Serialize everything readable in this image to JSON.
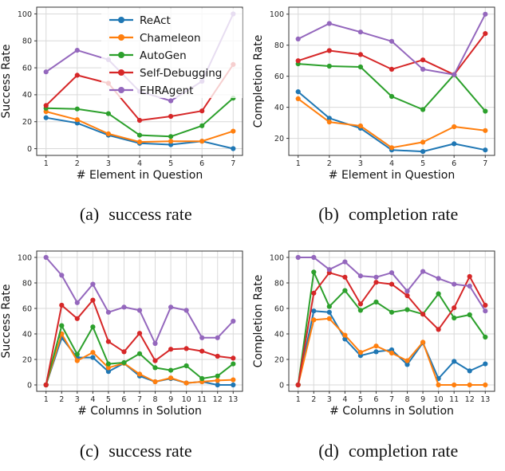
{
  "figure": {
    "captions": [
      {
        "tag": "(a)",
        "text": "success rate"
      },
      {
        "tag": "(b)",
        "text": "completion rate"
      },
      {
        "tag": "(c)",
        "text": "success rate"
      },
      {
        "tag": "(d)",
        "text": "completion rate"
      }
    ],
    "legend_labels": [
      "ReAct",
      "Chameleon",
      "AutoGen",
      "Self-Debugging",
      "EHRAgent"
    ],
    "palette": {
      "blue": "#1f77b4",
      "orange": "#ff7f0e",
      "green": "#2ca02c",
      "red": "#d62728",
      "purple": "#9467bd",
      "grid": "#d9d9d9",
      "spine": "#333333",
      "tick_text": "#262626",
      "label_text": "#111111"
    }
  },
  "chart_data": [
    {
      "id": "a",
      "type": "line",
      "title": "",
      "xlabel": "# Element in Question",
      "ylabel": "Success Rate",
      "x": [
        1,
        2,
        3,
        4,
        5,
        6,
        7
      ],
      "xlim": [
        0.7,
        7.3
      ],
      "ylim": [
        -5,
        105
      ],
      "yticks": [
        0,
        20,
        40,
        60,
        80,
        100
      ],
      "grid": true,
      "legend": true,
      "legend_position": "upper right",
      "series": [
        {
          "name": "ReAct",
          "color": "#1f77b4",
          "values": [
            23,
            19,
            10,
            4,
            3,
            5.5,
            0
          ]
        },
        {
          "name": "Chameleon",
          "color": "#ff7f0e",
          "values": [
            27.5,
            21.5,
            11,
            5,
            5.5,
            5.5,
            13
          ]
        },
        {
          "name": "AutoGen",
          "color": "#2ca02c",
          "values": [
            30,
            29.5,
            26,
            10,
            9,
            17,
            37.5
          ]
        },
        {
          "name": "Self-Debugging",
          "color": "#d62728",
          "values": [
            32,
            54.5,
            48.5,
            21,
            24,
            28,
            62.5
          ]
        },
        {
          "name": "EHRAgent",
          "color": "#9467bd",
          "values": [
            57,
            73,
            66,
            42.5,
            35.5,
            50,
            100
          ]
        }
      ]
    },
    {
      "id": "b",
      "type": "line",
      "title": "",
      "xlabel": "# Element in Question",
      "ylabel": "Completion Rate",
      "x": [
        1,
        2,
        3,
        4,
        5,
        6,
        7
      ],
      "xlim": [
        0.7,
        7.3
      ],
      "ylim": [
        9,
        104.5
      ],
      "yticks": [
        20,
        40,
        60,
        80,
        100
      ],
      "grid": true,
      "legend": false,
      "series": [
        {
          "name": "ReAct",
          "color": "#1f77b4",
          "values": [
            50,
            33,
            26.5,
            12.5,
            11.5,
            16.5,
            12.5
          ]
        },
        {
          "name": "Chameleon",
          "color": "#ff7f0e",
          "values": [
            45.5,
            30.5,
            28,
            14,
            17.5,
            27.5,
            25
          ]
        },
        {
          "name": "AutoGen",
          "color": "#2ca02c",
          "values": [
            68,
            66.5,
            66,
            47,
            38.5,
            61,
            37.5
          ]
        },
        {
          "name": "Self-Debugging",
          "color": "#d62728",
          "values": [
            70,
            76.5,
            74,
            64.5,
            70.5,
            61,
            87.5
          ]
        },
        {
          "name": "EHRAgent",
          "color": "#9467bd",
          "values": [
            84,
            94,
            88.5,
            82.5,
            64.5,
            61,
            100
          ]
        }
      ]
    },
    {
      "id": "c",
      "type": "line",
      "title": "",
      "xlabel": "# Columns in Solution",
      "ylabel": "Success Rate",
      "x": [
        1,
        2,
        3,
        4,
        5,
        6,
        7,
        8,
        9,
        10,
        11,
        12,
        13
      ],
      "xlim": [
        0.4,
        13.6
      ],
      "ylim": [
        -5,
        105
      ],
      "yticks": [
        0,
        20,
        40,
        60,
        80,
        100
      ],
      "grid": true,
      "legend": false,
      "series": [
        {
          "name": "ReAct",
          "color": "#1f77b4",
          "values": [
            0,
            37,
            21.5,
            21.5,
            10.5,
            17,
            7,
            2.5,
            5,
            1.5,
            2.5,
            0,
            0
          ]
        },
        {
          "name": "Chameleon",
          "color": "#ff7f0e",
          "values": [
            0,
            40,
            19,
            25.5,
            13.5,
            17,
            8.5,
            2.5,
            5.5,
            1.5,
            2.5,
            3.5,
            4
          ]
        },
        {
          "name": "AutoGen",
          "color": "#2ca02c",
          "values": [
            0,
            46.5,
            24,
            45.5,
            16.5,
            17.5,
            24.5,
            13.5,
            11.5,
            15,
            5,
            7,
            16.5
          ]
        },
        {
          "name": "Self-Debugging",
          "color": "#d62728",
          "values": [
            0,
            62.5,
            52,
            66.5,
            34,
            26,
            40.5,
            19,
            28,
            28.5,
            26.5,
            22.5,
            21
          ]
        },
        {
          "name": "EHRAgent",
          "color": "#9467bd",
          "values": [
            100,
            86,
            64.5,
            79,
            57,
            61,
            58.5,
            32.5,
            61,
            58.5,
            37,
            37,
            50
          ]
        }
      ]
    },
    {
      "id": "d",
      "type": "line",
      "title": "",
      "xlabel": "# Columns in Solution",
      "ylabel": "Completion Rate",
      "x": [
        1,
        2,
        3,
        4,
        5,
        6,
        7,
        8,
        9,
        10,
        11,
        12,
        13
      ],
      "xlim": [
        0.4,
        13.6
      ],
      "ylim": [
        -5,
        105
      ],
      "yticks": [
        0,
        20,
        40,
        60,
        80,
        100
      ],
      "grid": true,
      "legend": false,
      "series": [
        {
          "name": "ReAct",
          "color": "#1f77b4",
          "values": [
            0,
            58,
            57,
            36,
            23,
            26,
            27.5,
            16,
            33,
            5,
            18.5,
            11,
            16.5
          ]
        },
        {
          "name": "Chameleon",
          "color": "#ff7f0e",
          "values": [
            0,
            51,
            52,
            39,
            25.5,
            30.5,
            25,
            19,
            33.5,
            0,
            0,
            0,
            0
          ]
        },
        {
          "name": "AutoGen",
          "color": "#2ca02c",
          "values": [
            0,
            88.5,
            61.5,
            74,
            58.5,
            65,
            57,
            59,
            55.5,
            71.5,
            52.5,
            55,
            37.5
          ]
        },
        {
          "name": "Self-Debugging",
          "color": "#d62728",
          "values": [
            0,
            72,
            88,
            84.5,
            63.5,
            80.5,
            79,
            70,
            55.5,
            43.5,
            60.5,
            85,
            62.5
          ]
        },
        {
          "name": "EHRAgent",
          "color": "#9467bd",
          "values": [
            100,
            100,
            90.5,
            96.5,
            85.5,
            84.5,
            88,
            73.5,
            89,
            83.5,
            79,
            77.5,
            58
          ]
        }
      ]
    }
  ]
}
